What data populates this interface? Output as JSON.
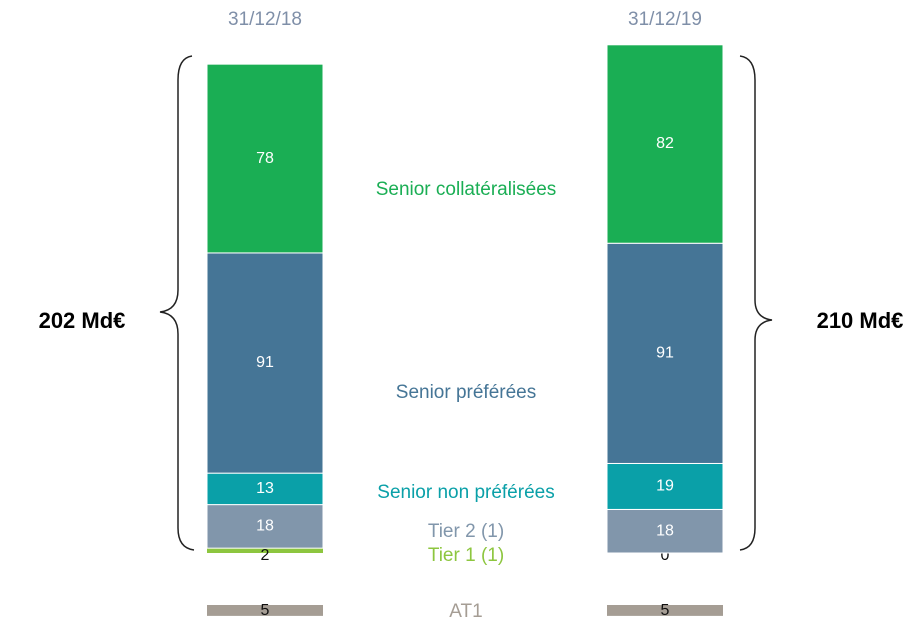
{
  "chart_data": {
    "type": "bar",
    "stacked": true,
    "categories": [
      "31/12/18",
      "31/12/19"
    ],
    "series": [
      {
        "name": "Tier 1 (1)",
        "color": "#8dc63f",
        "values": [
          2,
          0
        ]
      },
      {
        "name": "Tier 2 (1)",
        "color": "#8196ab",
        "values": [
          18,
          18
        ]
      },
      {
        "name": "Senior non préférées",
        "color": "#0aa0a8",
        "values": [
          13,
          19
        ]
      },
      {
        "name": "Senior préférées",
        "color": "#457596",
        "values": [
          91,
          91
        ]
      },
      {
        "name": "Senior collatéralisées",
        "color": "#1aae54",
        "values": [
          78,
          82
        ]
      }
    ],
    "extra_series": {
      "name": "AT1",
      "color": "#a59d94",
      "values": [
        5,
        5
      ]
    },
    "annotations": [
      "202 Md€",
      "210 Md€"
    ]
  }
}
